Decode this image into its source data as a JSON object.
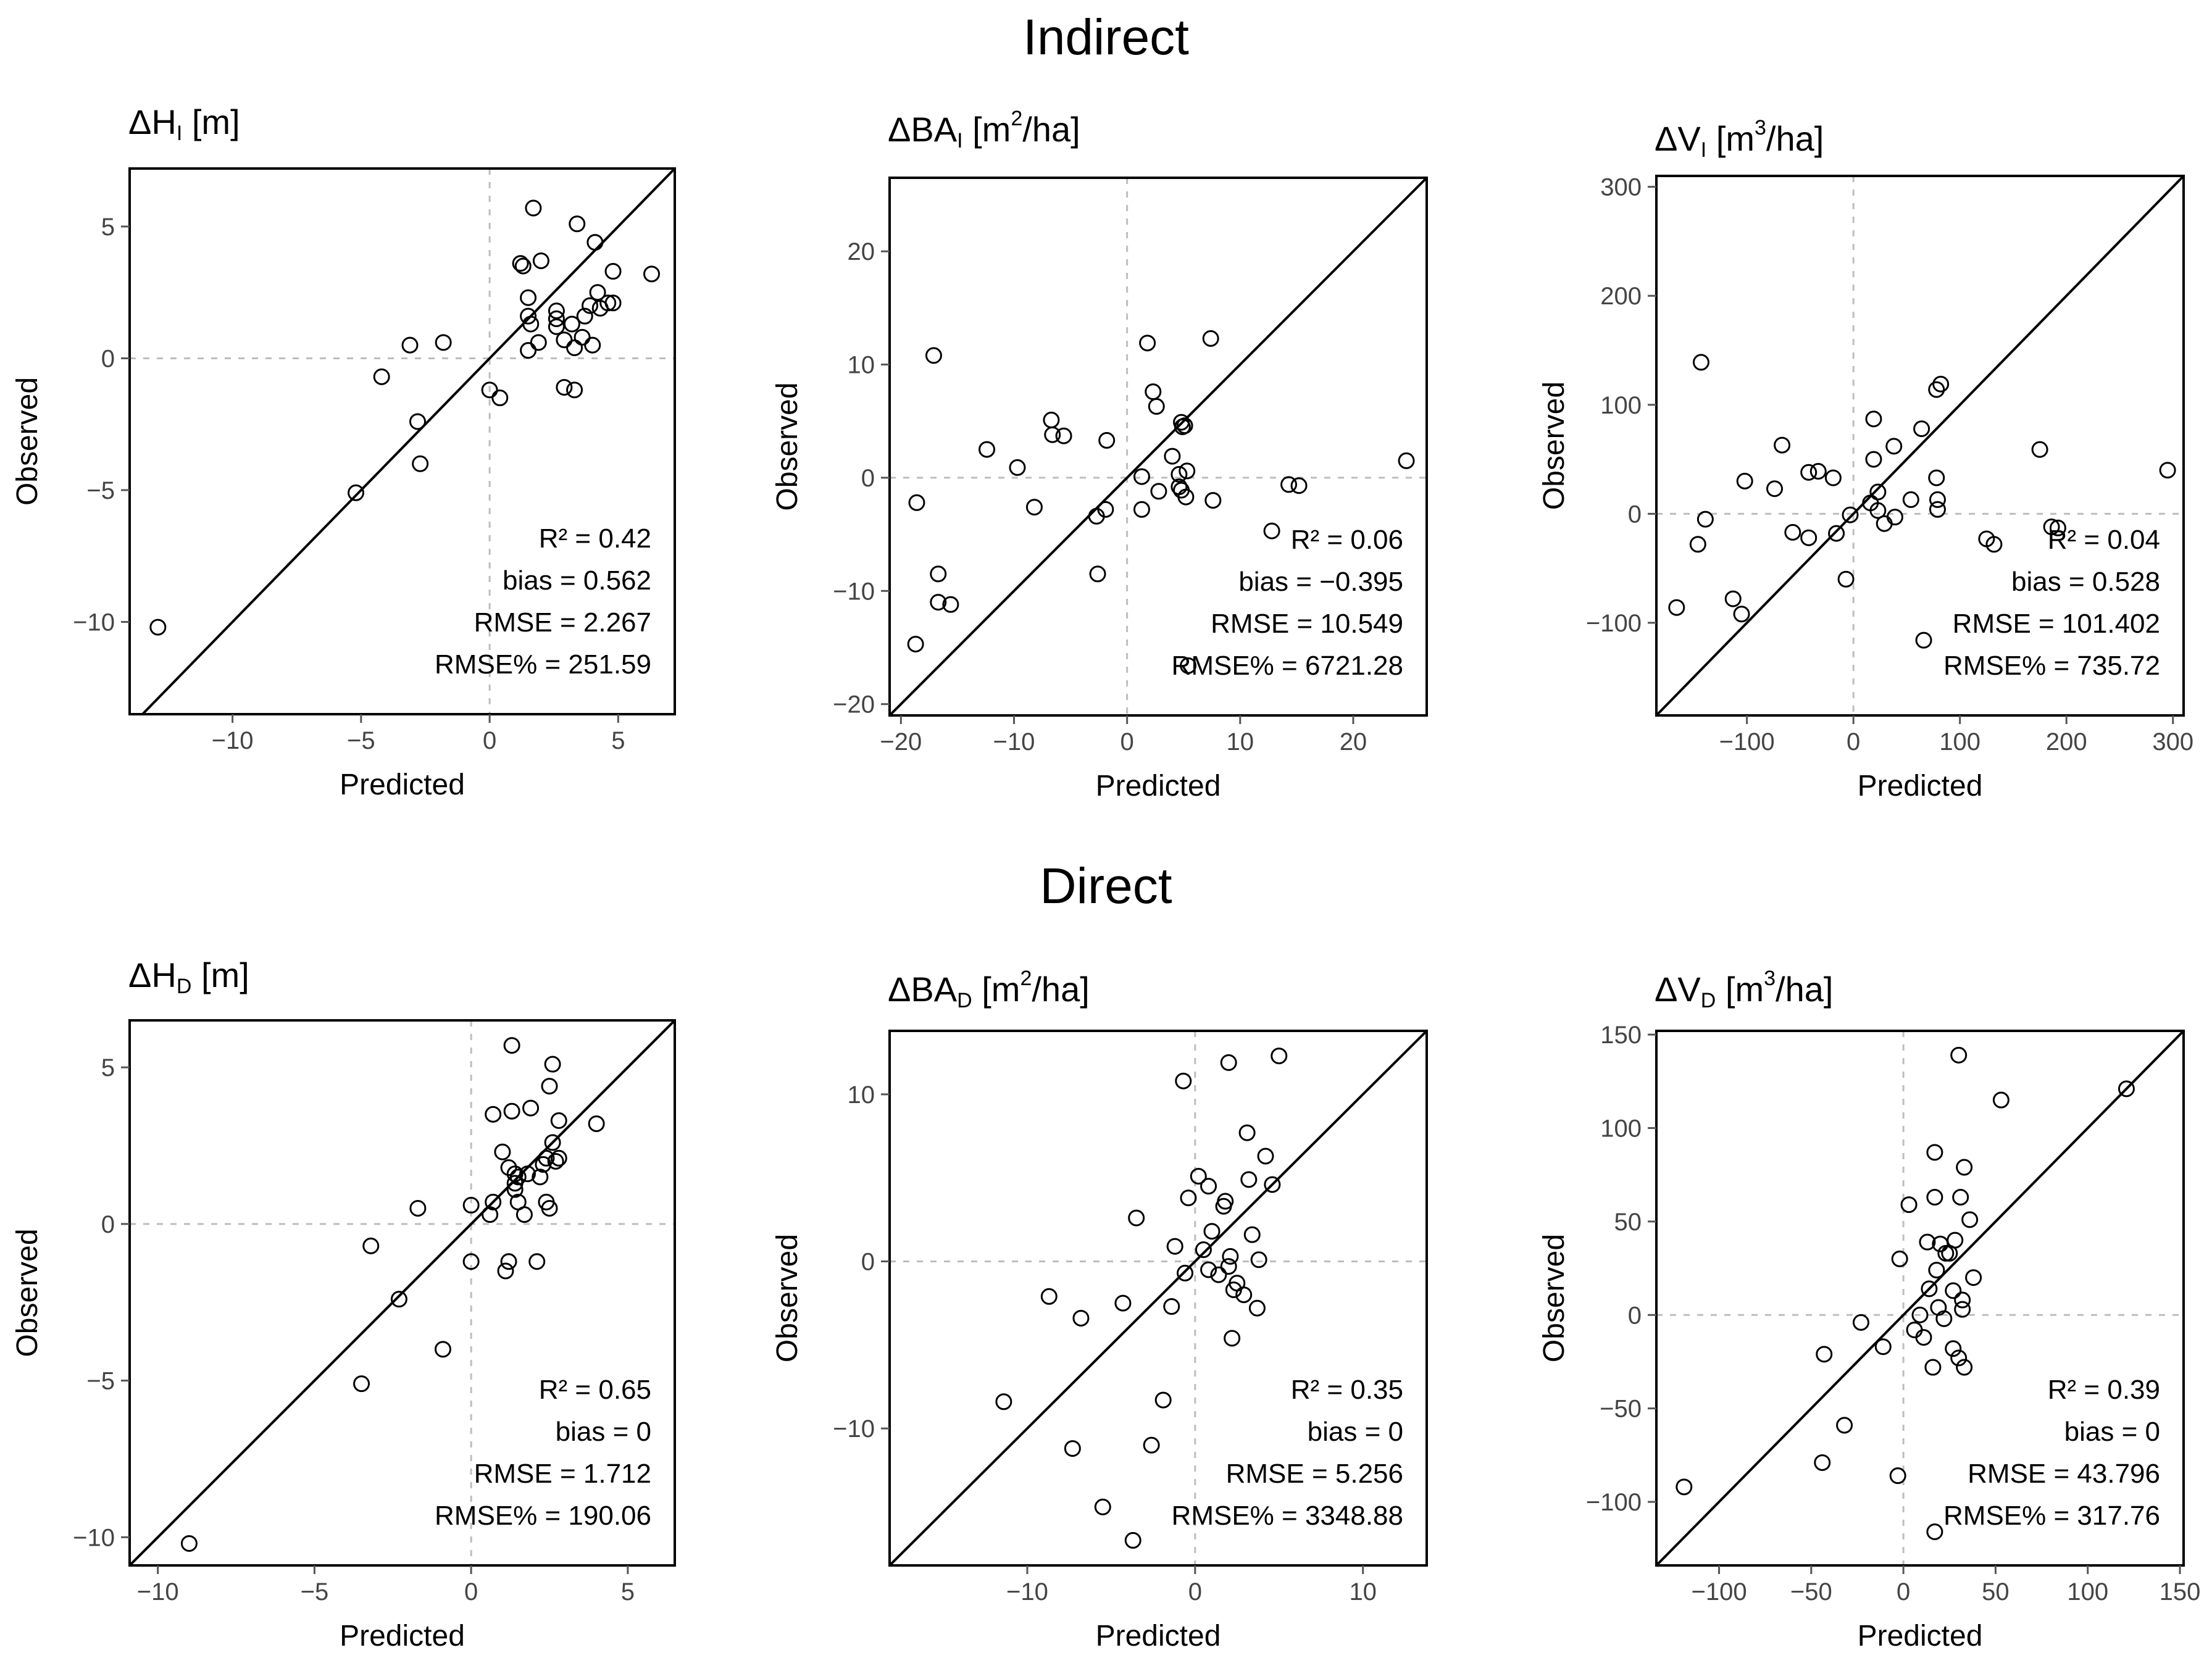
{
  "sections": {
    "indirect": "Indirect",
    "direct": "Direct"
  },
  "axis_labels": {
    "x": "Predicted",
    "y": "Observed"
  },
  "chart_data": [
    {
      "id": "h_i",
      "type": "scatter",
      "title": {
        "pre": "ΔH",
        "sub": "I",
        "post": " [m]"
      },
      "title_text": "ΔH_I [m]",
      "xlabel": "Predicted",
      "ylabel": "Observed",
      "xlim": [
        -14,
        7.2
      ],
      "ylim": [
        -13.5,
        7.2
      ],
      "xticks": [
        -10,
        -5,
        0,
        5
      ],
      "yticks": [
        -10,
        -5,
        0,
        5
      ],
      "stats": {
        "r2": "R² = 0.42",
        "bias": "bias = 0.562",
        "rmse": "RMSE = 2.267",
        "rmse_pct": "RMSE% = 251.59"
      },
      "points": [
        [
          -12.9,
          -10.2
        ],
        [
          -5.2,
          -5.1
        ],
        [
          -2.8,
          -2.4
        ],
        [
          -2.7,
          -4.0
        ],
        [
          -4.2,
          -0.7
        ],
        [
          -3.1,
          0.5
        ],
        [
          -1.8,
          0.6
        ],
        [
          0,
          -1.2
        ],
        [
          0.4,
          -1.5
        ],
        [
          1.2,
          3.6
        ],
        [
          1.3,
          3.5
        ],
        [
          1.5,
          2.3
        ],
        [
          1.5,
          1.6
        ],
        [
          1.6,
          1.3
        ],
        [
          1.5,
          0.3
        ],
        [
          1.9,
          0.6
        ],
        [
          1.7,
          5.7
        ],
        [
          2.0,
          3.7
        ],
        [
          2.6,
          1.8
        ],
        [
          2.6,
          1.2
        ],
        [
          2.6,
          1.5
        ],
        [
          2.9,
          0.7
        ],
        [
          2.9,
          -1.1
        ],
        [
          3.2,
          1.3
        ],
        [
          3.3,
          0.4
        ],
        [
          3.3,
          -1.2
        ],
        [
          3.4,
          5.1
        ],
        [
          3.6,
          0.8
        ],
        [
          3.7,
          1.6
        ],
        [
          3.9,
          2.0
        ],
        [
          4.0,
          0.5
        ],
        [
          4.1,
          4.4
        ],
        [
          4.2,
          2.5
        ],
        [
          4.3,
          1.9
        ],
        [
          4.6,
          2.1
        ],
        [
          4.8,
          2.1
        ],
        [
          4.8,
          3.3
        ],
        [
          6.3,
          3.2
        ]
      ]
    },
    {
      "id": "ba_i",
      "type": "scatter",
      "title": {
        "pre": "ΔBA",
        "sub": "I",
        "post": " [m",
        "sup": "2",
        "post2": "/ha]"
      },
      "title_text": "ΔBA_I [m²/ha]",
      "xlabel": "Predicted",
      "ylabel": "Observed",
      "xlim": [
        -21,
        26.5
      ],
      "ylim": [
        -21,
        26.5
      ],
      "xticks": [
        -20,
        -10,
        0,
        10,
        20
      ],
      "yticks": [
        -20,
        -10,
        0,
        10,
        20
      ],
      "stats": {
        "r2": "R² = 0.06",
        "bias": "bias = −0.395",
        "rmse": "RMSE = 10.549",
        "rmse_pct": "RMSE% = 6721.28"
      },
      "points": [
        [
          -18.7,
          -14.7
        ],
        [
          -18.6,
          -2.2
        ],
        [
          -17.1,
          10.8
        ],
        [
          -16.7,
          -8.5
        ],
        [
          -16.7,
          -11.0
        ],
        [
          -15.6,
          -11.2
        ],
        [
          -12.4,
          2.5
        ],
        [
          -9.7,
          0.9
        ],
        [
          -8.2,
          -2.6
        ],
        [
          -6.7,
          5.1
        ],
        [
          -6.6,
          3.8
        ],
        [
          -5.6,
          3.7
        ],
        [
          -2.7,
          -3.4
        ],
        [
          -2.6,
          -8.5
        ],
        [
          -1.9,
          -2.8
        ],
        [
          -1.8,
          3.3
        ],
        [
          1.3,
          -2.8
        ],
        [
          1.3,
          0.1
        ],
        [
          1.8,
          11.9
        ],
        [
          2.3,
          7.6
        ],
        [
          2.6,
          6.3
        ],
        [
          2.8,
          -1.2
        ],
        [
          4.0,
          1.9
        ],
        [
          4.6,
          -0.8
        ],
        [
          4.6,
          0.3
        ],
        [
          4.8,
          -1.1
        ],
        [
          4.8,
          4.9
        ],
        [
          4.9,
          4.5
        ],
        [
          5.1,
          4.6
        ],
        [
          5.2,
          -1.7
        ],
        [
          5.3,
          0.6
        ],
        [
          5.4,
          -16.6
        ],
        [
          7.4,
          12.3
        ],
        [
          7.6,
          -2.0
        ],
        [
          12.8,
          -4.7
        ],
        [
          14.3,
          -0.6
        ],
        [
          15.2,
          -0.7
        ],
        [
          24.7,
          1.5
        ]
      ]
    },
    {
      "id": "v_i",
      "type": "scatter",
      "title": {
        "pre": "ΔV",
        "sub": "I",
        "post": " [m",
        "sup": "3",
        "post2": "/ha]"
      },
      "title_text": "ΔV_I [m³/ha]",
      "xlabel": "Predicted",
      "ylabel": "Observed",
      "xlim": [
        -185,
        310
      ],
      "ylim": [
        -185,
        310
      ],
      "xticks": [
        -100,
        0,
        100,
        200,
        300
      ],
      "yticks": [
        -100,
        0,
        100,
        200,
        300
      ],
      "stats": {
        "r2": "R² = 0.04",
        "bias": "bias = 0.528",
        "rmse": "RMSE = 101.402",
        "rmse_pct": "RMSE% = 735.72"
      },
      "points": [
        [
          -166,
          -86
        ],
        [
          -146,
          -28
        ],
        [
          -143,
          139
        ],
        [
          -139,
          -5
        ],
        [
          -113,
          -78
        ],
        [
          -105,
          -92
        ],
        [
          -102,
          30
        ],
        [
          -74,
          23
        ],
        [
          -67,
          63
        ],
        [
          -57,
          -17
        ],
        [
          -42,
          38
        ],
        [
          -42,
          -22
        ],
        [
          -33,
          39
        ],
        [
          -19,
          33
        ],
        [
          -16,
          -18
        ],
        [
          -7,
          -60
        ],
        [
          -3,
          -1
        ],
        [
          16,
          10
        ],
        [
          19,
          50
        ],
        [
          19,
          87
        ],
        [
          23,
          20
        ],
        [
          23,
          3
        ],
        [
          29,
          -9
        ],
        [
          38,
          62
        ],
        [
          39,
          -3
        ],
        [
          54,
          13
        ],
        [
          64,
          78
        ],
        [
          66,
          -116
        ],
        [
          78,
          114
        ],
        [
          78,
          33
        ],
        [
          79,
          13
        ],
        [
          79,
          4
        ],
        [
          82,
          119
        ],
        [
          125,
          -23
        ],
        [
          132,
          -28
        ],
        [
          175,
          59
        ],
        [
          186,
          -12
        ],
        [
          192,
          -13
        ],
        [
          295,
          40
        ]
      ]
    },
    {
      "id": "h_d",
      "type": "scatter",
      "title": {
        "pre": "ΔH",
        "sub": "D",
        "post": " [m]"
      },
      "title_text": "ΔH_D [m]",
      "xlabel": "Predicted",
      "ylabel": "Observed",
      "xlim": [
        -10.9,
        6.5
      ],
      "ylim": [
        -10.9,
        6.5
      ],
      "xticks": [
        -10,
        -5,
        0,
        5
      ],
      "yticks": [
        -10,
        -5,
        0,
        5
      ],
      "stats": {
        "r2": "R² = 0.65",
        "bias": "bias = 0",
        "rmse": "RMSE = 1.712",
        "rmse_pct": "RMSE% = 190.06"
      },
      "points": [
        [
          -9,
          -10.2
        ],
        [
          -3.5,
          -5.1
        ],
        [
          -3.2,
          -0.7
        ],
        [
          -2.3,
          -2.4
        ],
        [
          -1.7,
          0.5
        ],
        [
          -0.9,
          -4.0
        ],
        [
          0,
          0.6
        ],
        [
          0,
          -1.2
        ],
        [
          0.6,
          0.3
        ],
        [
          0.7,
          0.7
        ],
        [
          0.7,
          3.5
        ],
        [
          1.0,
          2.3
        ],
        [
          1.1,
          -1.5
        ],
        [
          1.2,
          -1.2
        ],
        [
          1.2,
          1.8
        ],
        [
          1.3,
          5.7
        ],
        [
          1.3,
          3.6
        ],
        [
          1.4,
          1.6
        ],
        [
          1.4,
          1.3
        ],
        [
          1.4,
          1.1
        ],
        [
          1.5,
          1.5
        ],
        [
          1.5,
          0.7
        ],
        [
          1.7,
          0.3
        ],
        [
          1.8,
          1.6
        ],
        [
          1.9,
          3.7
        ],
        [
          2.1,
          -1.2
        ],
        [
          2.2,
          1.5
        ],
        [
          2.3,
          1.9
        ],
        [
          2.4,
          2.1
        ],
        [
          2.4,
          0.7
        ],
        [
          2.5,
          0.5
        ],
        [
          2.5,
          4.4
        ],
        [
          2.6,
          2.6
        ],
        [
          2.6,
          5.1
        ],
        [
          2.7,
          2.0
        ],
        [
          2.8,
          3.3
        ],
        [
          2.8,
          2.1
        ],
        [
          4.0,
          3.2
        ]
      ]
    },
    {
      "id": "ba_d",
      "type": "scatter",
      "title": {
        "pre": "ΔBA",
        "sub": "D",
        "post": " [m",
        "sup": "2",
        "post2": "/ha]"
      },
      "title_text": "ΔBA_D [m²/ha]",
      "xlabel": "Predicted",
      "ylabel": "Observed",
      "xlim": [
        -18.2,
        13.8
      ],
      "ylim": [
        -18.2,
        13.8
      ],
      "xticks": [
        -10,
        0,
        10
      ],
      "yticks": [
        -10,
        0,
        10
      ],
      "stats": {
        "r2": "R² = 0.35",
        "bias": "bias = 0",
        "rmse": "RMSE = 5.256",
        "rmse_pct": "RMSE% = 3348.88"
      },
      "points": [
        [
          -11.4,
          -8.4
        ],
        [
          -8.7,
          -2.1
        ],
        [
          -7.3,
          -11.2
        ],
        [
          -6.8,
          -3.4
        ],
        [
          -5.5,
          -14.7
        ],
        [
          -4.3,
          -2.5
        ],
        [
          -3.7,
          -16.7
        ],
        [
          -3.5,
          2.6
        ],
        [
          -2.6,
          -11.0
        ],
        [
          -1.9,
          -8.3
        ],
        [
          -1.4,
          -2.7
        ],
        [
          -1.2,
          0.9
        ],
        [
          -0.7,
          10.8
        ],
        [
          -0.6,
          -0.7
        ],
        [
          -0.4,
          3.8
        ],
        [
          0.2,
          5.1
        ],
        [
          0.5,
          0.7
        ],
        [
          0.8,
          -0.5
        ],
        [
          0.8,
          4.5
        ],
        [
          1.0,
          1.8
        ],
        [
          1.4,
          -0.8
        ],
        [
          1.7,
          3.3
        ],
        [
          1.8,
          3.6
        ],
        [
          2.0,
          -0.3
        ],
        [
          2.0,
          11.9
        ],
        [
          2.1,
          0.3
        ],
        [
          2.2,
          -4.6
        ],
        [
          2.3,
          -1.7
        ],
        [
          2.5,
          -1.3
        ],
        [
          2.9,
          -2.0
        ],
        [
          3.1,
          7.7
        ],
        [
          3.2,
          4.9
        ],
        [
          3.4,
          1.6
        ],
        [
          3.7,
          -2.8
        ],
        [
          3.8,
          0.1
        ],
        [
          4.2,
          6.3
        ],
        [
          4.6,
          4.6
        ],
        [
          5.0,
          12.3
        ]
      ]
    },
    {
      "id": "v_d",
      "type": "scatter",
      "title": {
        "pre": "ΔV",
        "sub": "D",
        "post": " [m",
        "sup": "3",
        "post2": "/ha]"
      },
      "title_text": "ΔV_D [m³/ha]",
      "xlabel": "Predicted",
      "ylabel": "Observed",
      "xlim": [
        -134,
        152
      ],
      "ylim": [
        -134,
        152
      ],
      "xticks": [
        -100,
        -50,
        0,
        50,
        100,
        150
      ],
      "yticks": [
        -100,
        -50,
        0,
        50,
        100,
        150
      ],
      "stats": {
        "r2": "R² = 0.39",
        "bias": "bias = 0",
        "rmse": "RMSE = 43.796",
        "rmse_pct": "RMSE% = 317.76"
      },
      "points": [
        [
          -119,
          -92
        ],
        [
          -44,
          -79
        ],
        [
          -43,
          -21
        ],
        [
          -32,
          -59
        ],
        [
          -23,
          -4
        ],
        [
          -11,
          -17
        ],
        [
          -3,
          -86
        ],
        [
          -2,
          30
        ],
        [
          3,
          59
        ],
        [
          6,
          -8
        ],
        [
          9,
          0
        ],
        [
          11,
          -12
        ],
        [
          13,
          39
        ],
        [
          14,
          14
        ],
        [
          16,
          -28
        ],
        [
          17,
          -116
        ],
        [
          17,
          63
        ],
        [
          17,
          87
        ],
        [
          18,
          24
        ],
        [
          19,
          4
        ],
        [
          20,
          38
        ],
        [
          22,
          -2
        ],
        [
          23,
          33
        ],
        [
          25,
          33
        ],
        [
          27,
          13
        ],
        [
          27,
          -18
        ],
        [
          28,
          40
        ],
        [
          30,
          -23
        ],
        [
          30,
          139
        ],
        [
          31,
          63
        ],
        [
          32,
          3
        ],
        [
          32,
          8
        ],
        [
          33,
          79
        ],
        [
          33,
          -28
        ],
        [
          36,
          51
        ],
        [
          38,
          20
        ],
        [
          53,
          115
        ],
        [
          121,
          121
        ]
      ]
    }
  ]
}
